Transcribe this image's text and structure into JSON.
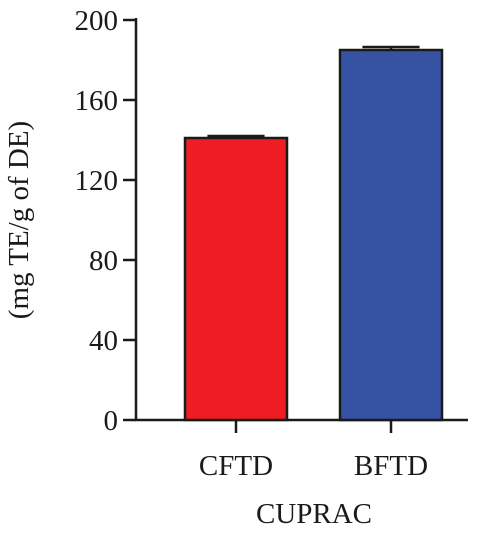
{
  "chart_data": {
    "type": "bar",
    "categories": [
      "CFTD",
      "BFTD"
    ],
    "values": [
      141,
      185
    ],
    "errors": [
      1,
      1.5
    ],
    "colors": [
      "#ef1c24",
      "#3653a3"
    ],
    "xlabel": "CUPRAC",
    "ylabel": "(mg TE/g of DE)",
    "ylim": [
      0,
      200
    ],
    "yticks": [
      0,
      40,
      80,
      120,
      160,
      200
    ],
    "grid": false,
    "legend": "none"
  }
}
